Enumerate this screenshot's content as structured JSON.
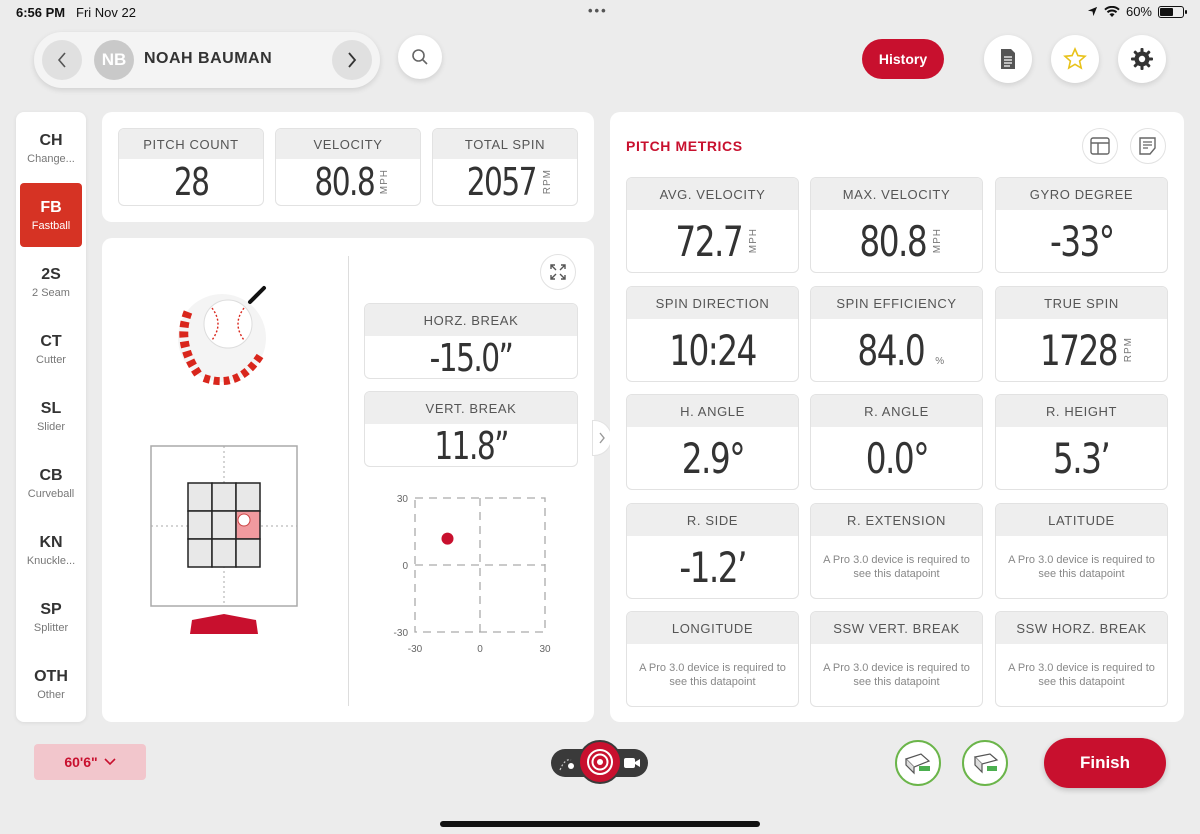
{
  "status_bar": {
    "time": "6:56 PM",
    "date": "Fri Nov 22",
    "battery": "60%",
    "battery_level": 0.6
  },
  "header": {
    "player_initials": "NB",
    "player_name": "NOAH BAUMAN",
    "history_label": "History"
  },
  "pitch_types": [
    {
      "code": "CH",
      "name": "Change..."
    },
    {
      "code": "FB",
      "name": "Fastball",
      "active": true
    },
    {
      "code": "2S",
      "name": "2 Seam"
    },
    {
      "code": "CT",
      "name": "Cutter"
    },
    {
      "code": "SL",
      "name": "Slider"
    },
    {
      "code": "CB",
      "name": "Curveball"
    },
    {
      "code": "KN",
      "name": "Knuckle..."
    },
    {
      "code": "SP",
      "name": "Splitter"
    },
    {
      "code": "OTH",
      "name": "Other"
    }
  ],
  "top_stats": {
    "pitch_count": {
      "label": "PITCH COUNT",
      "value": "28"
    },
    "velocity": {
      "label": "VELOCITY",
      "value": "80.8",
      "unit": "MPH"
    },
    "total_spin": {
      "label": "TOTAL SPIN",
      "value": "2057",
      "unit": "RPM"
    }
  },
  "breaks": {
    "horz": {
      "label": "HORZ. BREAK",
      "value": "-15.0”"
    },
    "vert": {
      "label": "VERT. BREAK",
      "value": "11.8”"
    }
  },
  "break_plot": {
    "y_ticks": [
      "30",
      "0",
      "-30"
    ],
    "x_ticks": [
      "-30",
      "0",
      "30"
    ],
    "point": {
      "x": -15.0,
      "y": 11.8
    },
    "point_color": "#c8102e"
  },
  "metrics": {
    "title": "PITCH METRICS",
    "cards": [
      {
        "label": "AVG. VELOCITY",
        "value": "72.7",
        "unit": "MPH"
      },
      {
        "label": "MAX. VELOCITY",
        "value": "80.8",
        "unit": "MPH"
      },
      {
        "label": "GYRO DEGREE",
        "value": "-33°",
        "unit": ""
      },
      {
        "label": "SPIN DIRECTION",
        "value": "10:24",
        "unit": ""
      },
      {
        "label": "SPIN EFFICIENCY",
        "value": "84.0",
        "unit": "%"
      },
      {
        "label": "TRUE SPIN",
        "value": "1728",
        "unit": "RPM"
      },
      {
        "label": "H. ANGLE",
        "value": "2.9°",
        "unit": ""
      },
      {
        "label": "R. ANGLE",
        "value": "0.0°",
        "unit": ""
      },
      {
        "label": "R. HEIGHT",
        "value": "5.3’",
        "unit": ""
      },
      {
        "label": "R. SIDE",
        "value": "-1.2’",
        "unit": ""
      },
      {
        "label": "R. EXTENSION",
        "note": "A Pro 3.0 device is required to see this datapoint"
      },
      {
        "label": "LATITUDE",
        "note": "A Pro 3.0 device is required to see this datapoint"
      },
      {
        "label": "LONGITUDE",
        "note": "A Pro 3.0 device is required to see this datapoint"
      },
      {
        "label": "SSW VERT. BREAK",
        "note": "A Pro 3.0 device is required to see this datapoint"
      },
      {
        "label": "SSW HORZ. BREAK",
        "note": "A Pro 3.0 device is required to see this datapoint"
      }
    ]
  },
  "bottom": {
    "distance": "60'6\"",
    "finish_label": "Finish"
  },
  "colors": {
    "brand_red": "#c8102e",
    "active_pitch": "#d63324",
    "device_ok": "#6bb54a"
  }
}
